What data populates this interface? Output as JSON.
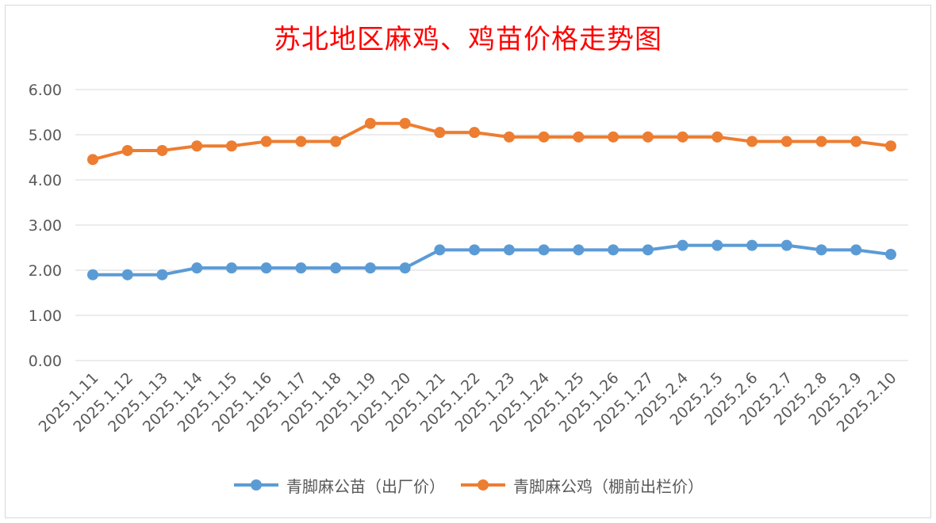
{
  "chart_data": {
    "type": "line",
    "title": "苏北地区麻鸡、鸡苗价格走势图",
    "categories": [
      "2025.1.11",
      "2025.1.12",
      "2025.1.13",
      "2025.1.14",
      "2025.1.15",
      "2025.1.16",
      "2025.1.17",
      "2025.1.18",
      "2025.1.19",
      "2025.1.20",
      "2025.1.21",
      "2025.1.22",
      "2025.1.23",
      "2025.1.24",
      "2025.1.25",
      "2025.1.26",
      "2025.1.27",
      "2025.2.4",
      "2025.2.5",
      "2025.2.6",
      "2025.2.7",
      "2025.2.8",
      "2025.2.9",
      "2025.2.10"
    ],
    "series": [
      {
        "name": "青脚麻公苗（出厂价）",
        "color": "#5b9bd5",
        "values": [
          1.9,
          1.9,
          1.9,
          2.05,
          2.05,
          2.05,
          2.05,
          2.05,
          2.05,
          2.05,
          2.45,
          2.45,
          2.45,
          2.45,
          2.45,
          2.45,
          2.45,
          2.55,
          2.55,
          2.55,
          2.55,
          2.45,
          2.45,
          2.35
        ]
      },
      {
        "name": "青脚麻公鸡（棚前出栏价）",
        "color": "#ed7d31",
        "values": [
          4.45,
          4.65,
          4.65,
          4.75,
          4.75,
          4.85,
          4.85,
          4.85,
          5.25,
          5.25,
          5.05,
          5.05,
          4.95,
          4.95,
          4.95,
          4.95,
          4.95,
          4.95,
          4.95,
          4.85,
          4.85,
          4.85,
          4.85,
          4.75
        ]
      }
    ],
    "y_ticks": [
      "0.00",
      "1.00",
      "2.00",
      "3.00",
      "4.00",
      "5.00",
      "6.00"
    ],
    "ylim": [
      0,
      6
    ],
    "grid": true,
    "legend_position": "bottom"
  }
}
